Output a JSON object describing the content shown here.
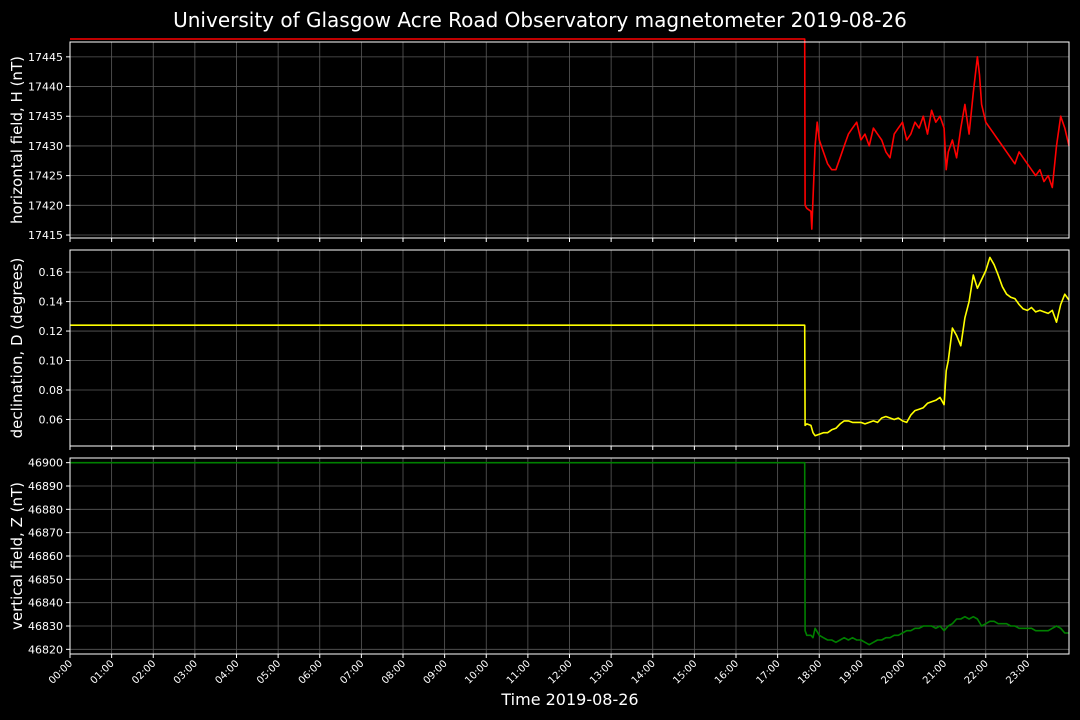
{
  "chart_data": {
    "type": "line",
    "title": "University of Glasgow Acre Road Observatory magnetometer 2019-08-26",
    "xlabel": "Time 2019-08-26",
    "x_ticks": [
      "00:00",
      "01:00",
      "02:00",
      "03:00",
      "04:00",
      "05:00",
      "06:00",
      "07:00",
      "08:00",
      "09:00",
      "10:00",
      "11:00",
      "12:00",
      "13:00",
      "14:00",
      "15:00",
      "16:00",
      "17:00",
      "18:00",
      "19:00",
      "20:00",
      "21:00",
      "22:00",
      "23:00"
    ],
    "xlim_hours": [
      0,
      24
    ],
    "grid": true,
    "background": "#000000",
    "panels": [
      {
        "ylabel": "horizontal field, H (nT)",
        "color": "#ff0000",
        "ylim": [
          17414.5,
          17447.5
        ],
        "yticks": [
          17415,
          17420,
          17425,
          17430,
          17435,
          17440,
          17445
        ],
        "x_hours": [
          0,
          17.65,
          17.66,
          17.7,
          17.8,
          17.82,
          17.9,
          17.95,
          18.0,
          18.1,
          18.2,
          18.3,
          18.4,
          18.5,
          18.6,
          18.7,
          18.8,
          18.9,
          19.0,
          19.1,
          19.2,
          19.3,
          19.4,
          19.5,
          19.6,
          19.7,
          19.8,
          19.9,
          20.0,
          20.1,
          20.2,
          20.3,
          20.4,
          20.5,
          20.6,
          20.7,
          20.8,
          20.9,
          21.0,
          21.05,
          21.1,
          21.2,
          21.3,
          21.4,
          21.5,
          21.6,
          21.7,
          21.8,
          21.85,
          21.9,
          22.0,
          22.1,
          22.2,
          22.3,
          22.4,
          22.5,
          22.6,
          22.7,
          22.8,
          22.9,
          23.0,
          23.1,
          23.2,
          23.3,
          23.4,
          23.5,
          23.6,
          23.7,
          23.8,
          23.9,
          24.0
        ],
        "values": [
          17448,
          17448,
          17420,
          17419.5,
          17419,
          17416,
          17430,
          17434,
          17431,
          17429,
          17427,
          17426,
          17426,
          17428,
          17430,
          17432,
          17433,
          17434,
          17431,
          17432,
          17430,
          17433,
          17432,
          17431,
          17429,
          17428,
          17432,
          17433,
          17434,
          17431,
          17432,
          17434,
          17433,
          17435,
          17432,
          17436,
          17434,
          17435,
          17433,
          17426,
          17429,
          17431,
          17428,
          17433,
          17437,
          17432,
          17439,
          17445,
          17442,
          17437,
          17434,
          17433,
          17432,
          17431,
          17430,
          17429,
          17428,
          17427,
          17429,
          17428,
          17427,
          17426,
          17425,
          17426,
          17424,
          17425,
          17423,
          17430,
          17435,
          17433,
          17430
        ]
      },
      {
        "ylabel": "declination, D (degrees)",
        "color": "#ffff00",
        "ylim": [
          0.042,
          0.175
        ],
        "yticks": [
          0.06,
          0.08,
          0.1,
          0.12,
          0.14,
          0.16
        ],
        "ytick_labels": [
          "0.06",
          "0.08",
          "0.10",
          "0.12",
          "0.14",
          "0.16"
        ],
        "x_hours": [
          0,
          17.65,
          17.66,
          17.7,
          17.8,
          17.85,
          17.9,
          18.0,
          18.1,
          18.2,
          18.3,
          18.4,
          18.5,
          18.6,
          18.7,
          18.8,
          18.9,
          19.0,
          19.1,
          19.2,
          19.3,
          19.4,
          19.5,
          19.6,
          19.7,
          19.8,
          19.9,
          20.0,
          20.1,
          20.2,
          20.3,
          20.4,
          20.5,
          20.6,
          20.7,
          20.8,
          20.9,
          21.0,
          21.05,
          21.1,
          21.2,
          21.3,
          21.4,
          21.5,
          21.6,
          21.7,
          21.8,
          21.9,
          22.0,
          22.1,
          22.2,
          22.3,
          22.4,
          22.5,
          22.6,
          22.7,
          22.8,
          22.9,
          23.0,
          23.1,
          23.2,
          23.3,
          23.4,
          23.5,
          23.6,
          23.7,
          23.8,
          23.9,
          24.0
        ],
        "values": [
          0.124,
          0.124,
          0.056,
          0.057,
          0.056,
          0.051,
          0.049,
          0.05,
          0.051,
          0.051,
          0.053,
          0.054,
          0.057,
          0.059,
          0.059,
          0.058,
          0.058,
          0.058,
          0.057,
          0.058,
          0.059,
          0.058,
          0.061,
          0.062,
          0.061,
          0.06,
          0.061,
          0.059,
          0.058,
          0.063,
          0.066,
          0.067,
          0.068,
          0.071,
          0.072,
          0.073,
          0.075,
          0.07,
          0.093,
          0.1,
          0.122,
          0.117,
          0.11,
          0.129,
          0.14,
          0.158,
          0.149,
          0.155,
          0.161,
          0.17,
          0.165,
          0.158,
          0.15,
          0.145,
          0.143,
          0.142,
          0.138,
          0.135,
          0.134,
          0.136,
          0.133,
          0.134,
          0.133,
          0.132,
          0.134,
          0.126,
          0.138,
          0.145,
          0.141
        ]
      },
      {
        "ylabel": "vertical field, Z (nT)",
        "color": "#008000",
        "ylim": [
          46818,
          46902
        ],
        "yticks": [
          46820,
          46830,
          46840,
          46850,
          46860,
          46870,
          46880,
          46890,
          46900
        ],
        "x_hours": [
          0,
          17.65,
          17.66,
          17.7,
          17.8,
          17.85,
          17.9,
          18.0,
          18.1,
          18.2,
          18.3,
          18.4,
          18.5,
          18.6,
          18.7,
          18.8,
          18.9,
          19.0,
          19.1,
          19.2,
          19.3,
          19.4,
          19.5,
          19.6,
          19.7,
          19.8,
          19.9,
          20.0,
          20.1,
          20.2,
          20.3,
          20.4,
          20.5,
          20.6,
          20.7,
          20.8,
          20.9,
          21.0,
          21.1,
          21.2,
          21.3,
          21.4,
          21.5,
          21.6,
          21.7,
          21.8,
          21.9,
          22.0,
          22.1,
          22.2,
          22.3,
          22.4,
          22.5,
          22.6,
          22.7,
          22.8,
          22.9,
          23.0,
          23.1,
          23.2,
          23.3,
          23.4,
          23.5,
          23.6,
          23.7,
          23.8,
          23.9,
          24.0
        ],
        "values": [
          46900,
          46900,
          46828,
          46826,
          46826,
          46825,
          46829,
          46826,
          46825,
          46824,
          46824,
          46823,
          46824,
          46825,
          46824,
          46825,
          46824,
          46824,
          46823,
          46822,
          46823,
          46824,
          46824,
          46825,
          46825,
          46826,
          46826,
          46827,
          46828,
          46828,
          46829,
          46829,
          46830,
          46830,
          46830,
          46829,
          46830,
          46828,
          46830,
          46831,
          46833,
          46833,
          46834,
          46833,
          46834,
          46833,
          46830,
          46831,
          46832,
          46832,
          46831,
          46831,
          46831,
          46830,
          46830,
          46829,
          46829,
          46829,
          46829,
          46828,
          46828,
          46828,
          46828,
          46829,
          46830,
          46829,
          46827,
          46827
        ]
      }
    ]
  }
}
